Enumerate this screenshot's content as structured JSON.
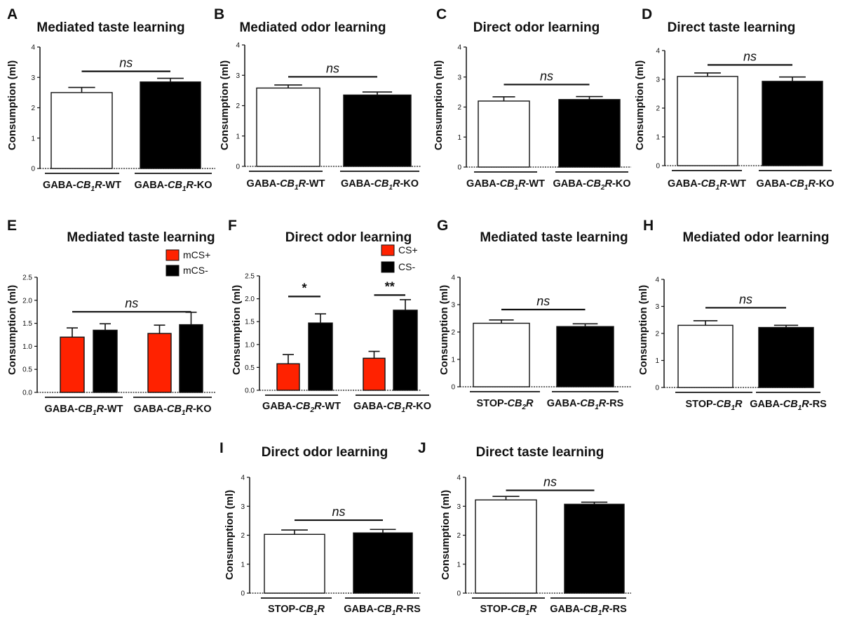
{
  "colors": {
    "wt_bar": "#ffffff",
    "ko_bar": "#000000",
    "plus_bar": "#ff2200",
    "minus_bar": "#000000",
    "axis": "#111111"
  },
  "chart_data": [
    {
      "letter": "A",
      "type": "bar",
      "title": "Mediated taste learning",
      "ylabel": "Consumption (ml)",
      "ylim": [
        0,
        4
      ],
      "yticks": [
        "0",
        "1",
        "2",
        "3",
        "4"
      ],
      "categories": [
        "GABA-CB1R-WT",
        "GABA-CB1R-KO"
      ],
      "category_parts": [
        [
          "GABA-",
          "CB",
          "1",
          "R",
          "-WT"
        ],
        [
          "GABA-",
          "CB",
          "1",
          "R",
          "-KO"
        ]
      ],
      "values": [
        2.5,
        2.85
      ],
      "errors": [
        0.17,
        0.12
      ],
      "fills": [
        "white",
        "black"
      ],
      "significance": [
        {
          "label": "ns",
          "from": 0,
          "to": 1,
          "y": 3.2
        }
      ]
    },
    {
      "letter": "B",
      "type": "bar",
      "title": "Mediated odor learning",
      "ylabel": "Consumption (ml)",
      "ylim": [
        0,
        4
      ],
      "yticks": [
        "0",
        "1",
        "2",
        "3",
        "4"
      ],
      "categories": [
        "GABA-CB1R-WT",
        "GABA-CB1R-KO"
      ],
      "category_parts": [
        [
          "GABA-",
          "CB",
          "1",
          "R",
          "-WT"
        ],
        [
          "GABA-",
          "CB",
          "1",
          "R",
          "-KO"
        ]
      ],
      "values": [
        2.58,
        2.35
      ],
      "errors": [
        0.1,
        0.1
      ],
      "fills": [
        "white",
        "black"
      ],
      "significance": [
        {
          "label": "ns",
          "from": 0,
          "to": 1,
          "y": 2.95
        }
      ]
    },
    {
      "letter": "C",
      "type": "bar",
      "title": "Direct odor learning",
      "ylabel": "Consumption (ml)",
      "ylim": [
        0,
        4
      ],
      "yticks": [
        "0",
        "1",
        "2",
        "3",
        "4"
      ],
      "categories": [
        "GABA-CB1R-WT",
        "GABA-CB2R-KO"
      ],
      "category_parts": [
        [
          "GABA-",
          "CB",
          "1",
          "R",
          "-WT"
        ],
        [
          "GABA-",
          "CB",
          "2",
          "R",
          "-KO"
        ]
      ],
      "values": [
        2.2,
        2.25
      ],
      "errors": [
        0.14,
        0.1
      ],
      "fills": [
        "white",
        "black"
      ],
      "significance": [
        {
          "label": "ns",
          "from": 0,
          "to": 1,
          "y": 2.75
        }
      ]
    },
    {
      "letter": "D",
      "type": "bar",
      "title": "Direct taste learning",
      "ylabel": "Consumption (ml)",
      "ylim": [
        0,
        4
      ],
      "yticks": [
        "0",
        "1",
        "2",
        "3",
        "4"
      ],
      "categories": [
        "GABA-CB1R-WT",
        "GABA-CB1R-KO"
      ],
      "category_parts": [
        [
          "GABA-",
          "CB",
          "1",
          "R",
          "-WT"
        ],
        [
          "GABA-",
          "CB",
          "1",
          "R",
          "-KO"
        ]
      ],
      "values": [
        3.1,
        2.93
      ],
      "errors": [
        0.12,
        0.15
      ],
      "fills": [
        "white",
        "black"
      ],
      "significance": [
        {
          "label": "ns",
          "from": 0,
          "to": 1,
          "y": 3.5
        }
      ]
    },
    {
      "letter": "E",
      "type": "bar",
      "title": "Mediated taste learning",
      "ylabel": "Consumption (ml)",
      "ylim": [
        0,
        2.5
      ],
      "yticks": [
        "0.0",
        "0.5",
        "1.0",
        "1.5",
        "2.0",
        "2.5"
      ],
      "categories": [
        "GABA-CB1R-WT",
        "GABA-CB1R-KO"
      ],
      "category_parts": [
        [
          "GABA-",
          "CB",
          "1",
          "R",
          "-WT"
        ],
        [
          "GABA-",
          "CB",
          "1",
          "R",
          "-KO"
        ]
      ],
      "series": [
        {
          "name": "mCS+",
          "values": [
            1.2,
            1.28
          ],
          "errors": [
            0.2,
            0.18
          ]
        },
        {
          "name": "mCS-",
          "values": [
            1.35,
            1.47
          ],
          "errors": [
            0.14,
            0.27
          ]
        }
      ],
      "significance": [
        {
          "label": "ns",
          "from": 0,
          "to": 3,
          "y": 1.75
        }
      ],
      "legend": "top-right"
    },
    {
      "letter": "F",
      "type": "bar",
      "title": "Direct odor learning",
      "ylabel": "Consumption (ml)",
      "ylim": [
        0,
        2.5
      ],
      "yticks": [
        "0.0",
        "0.5",
        "1.0",
        "1.5",
        "2.0",
        "2.5"
      ],
      "categories": [
        "GABA-CB2R-WT",
        "GABA-CB1R-KO"
      ],
      "category_parts": [
        [
          "GABA-",
          "CB",
          "2",
          "R",
          "-WT"
        ],
        [
          "GABA-",
          "CB",
          "1",
          "R",
          "-KO"
        ]
      ],
      "series": [
        {
          "name": "CS+",
          "values": [
            0.58,
            0.7
          ],
          "errors": [
            0.2,
            0.15
          ]
        },
        {
          "name": "CS-",
          "values": [
            1.47,
            1.75
          ],
          "errors": [
            0.2,
            0.23
          ]
        }
      ],
      "significance": [
        {
          "label": "*",
          "from": 0,
          "to": 1,
          "y": 2.05
        },
        {
          "label": "**",
          "from": 2,
          "to": 3,
          "y": 2.08
        }
      ],
      "legend": "top-right"
    },
    {
      "letter": "G",
      "type": "bar",
      "title": "Mediated taste learning",
      "ylabel": "Consumption (ml)",
      "ylim": [
        0,
        4
      ],
      "yticks": [
        "0",
        "1",
        "2",
        "3",
        "4"
      ],
      "categories": [
        "STOP-CB2R",
        "GABA-CB1R-RS"
      ],
      "category_parts": [
        [
          "STOP-",
          "CB",
          "2",
          "R",
          ""
        ],
        [
          "GABA-",
          "CB",
          "1",
          "R",
          "-RS"
        ]
      ],
      "values": [
        2.32,
        2.2
      ],
      "errors": [
        0.12,
        0.1
      ],
      "fills": [
        "white",
        "black"
      ],
      "significance": [
        {
          "label": "ns",
          "from": 0,
          "to": 1,
          "y": 2.82
        }
      ]
    },
    {
      "letter": "H",
      "type": "bar",
      "title": "Mediated odor learning",
      "ylabel": "Consumption (ml)",
      "ylim": [
        0,
        4
      ],
      "yticks": [
        "0",
        "1",
        "2",
        "3",
        "4"
      ],
      "categories": [
        "STOP-CB1R",
        "GABA-CB1R-RS"
      ],
      "category_parts": [
        [
          "STOP-",
          "CB",
          "1",
          "R",
          ""
        ],
        [
          "GABA-",
          "CB",
          "1",
          "R",
          "-RS"
        ]
      ],
      "values": [
        2.3,
        2.22
      ],
      "errors": [
        0.17,
        0.08
      ],
      "fills": [
        "white",
        "black"
      ],
      "significance": [
        {
          "label": "ns",
          "from": 0,
          "to": 1,
          "y": 2.95
        }
      ]
    },
    {
      "letter": "I",
      "type": "bar",
      "title": "Direct odor learning",
      "ylabel": "Consumption (ml)",
      "ylim": [
        0,
        4
      ],
      "yticks": [
        "0",
        "1",
        "2",
        "3",
        "4"
      ],
      "categories": [
        "STOP-CB1R",
        "GABA-CB1R-RS"
      ],
      "category_parts": [
        [
          "STOP-",
          "CB",
          "1",
          "R",
          ""
        ],
        [
          "GABA-",
          "CB",
          "1",
          "R",
          "-RS"
        ]
      ],
      "values": [
        2.03,
        2.08
      ],
      "errors": [
        0.15,
        0.12
      ],
      "fills": [
        "white",
        "black"
      ],
      "significance": [
        {
          "label": "ns",
          "from": 0,
          "to": 1,
          "y": 2.52
        }
      ]
    },
    {
      "letter": "J",
      "type": "bar",
      "title": "Direct taste learning",
      "ylabel": "Consumption (ml)",
      "ylim": [
        0,
        4
      ],
      "yticks": [
        "0",
        "1",
        "2",
        "3",
        "4"
      ],
      "categories": [
        "STOP-CB1R",
        "GABA-CB1R-RS"
      ],
      "category_parts": [
        [
          "STOP-",
          "CB",
          "1",
          "R",
          ""
        ],
        [
          "GABA-",
          "CB",
          "1",
          "R",
          "-RS"
        ]
      ],
      "values": [
        3.22,
        3.07
      ],
      "errors": [
        0.12,
        0.07
      ],
      "fills": [
        "white",
        "black"
      ],
      "significance": [
        {
          "label": "ns",
          "from": 0,
          "to": 1,
          "y": 3.55
        }
      ]
    }
  ]
}
